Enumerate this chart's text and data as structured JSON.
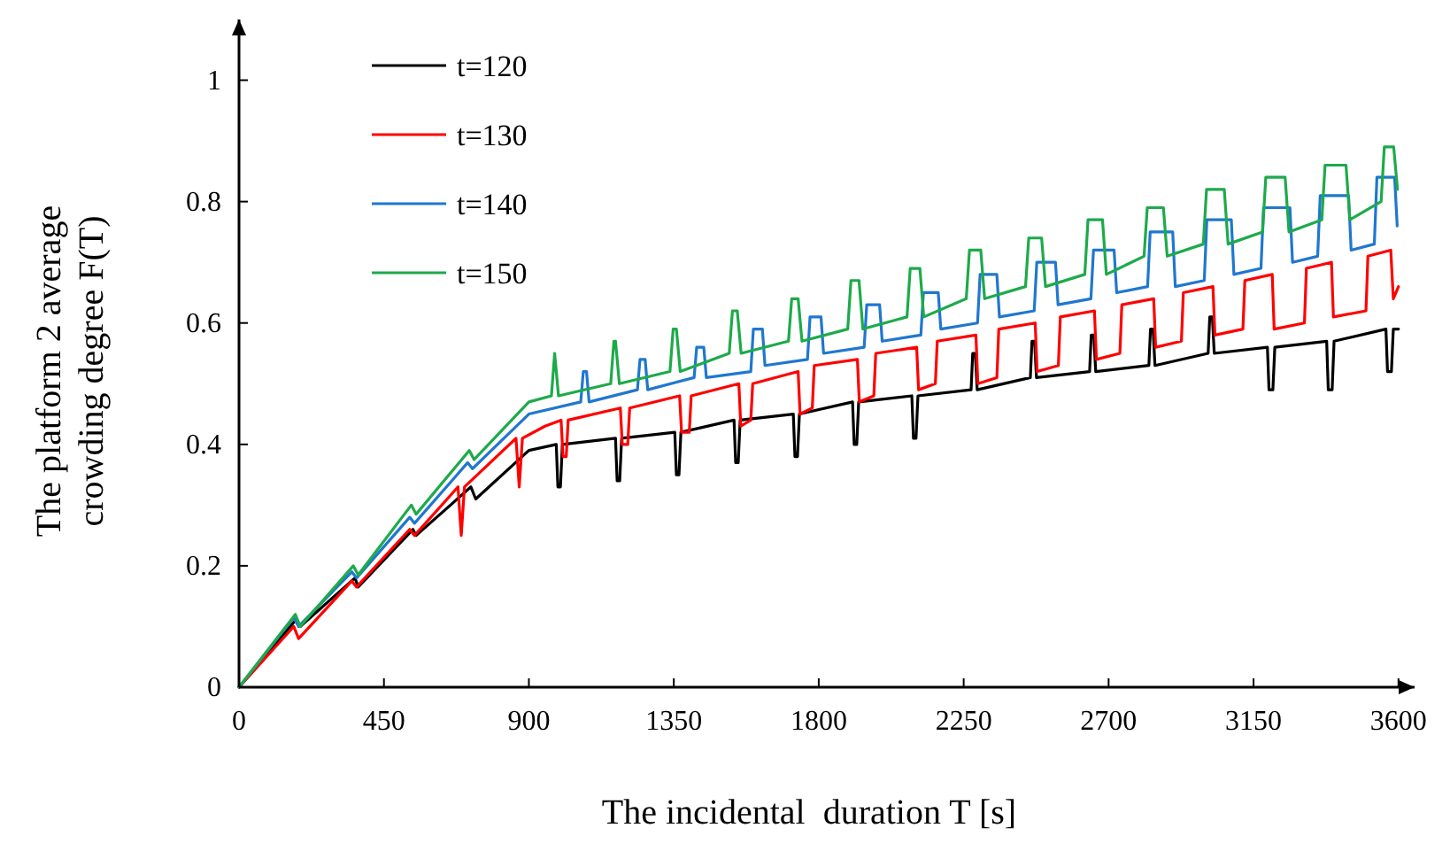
{
  "chart_data": {
    "type": "line",
    "xlabel": "The incidental  duration T [s]",
    "ylabel": "The platform 2 average crowding degree F(T)",
    "xlim": [
      0,
      3650
    ],
    "ylim": [
      0,
      1.1
    ],
    "xticks": [
      0,
      450,
      900,
      1350,
      1800,
      2250,
      2700,
      3150,
      3600
    ],
    "yticks": [
      0,
      0.2,
      0.4,
      0.6,
      0.8,
      1
    ],
    "grid": false,
    "legend": "top left",
    "marker": "none",
    "line_style": "solid",
    "series": [
      {
        "name": "t=120",
        "color": "#000000",
        "x": [
          0,
          175,
          190,
          360,
          370,
          540,
          550,
          720,
          735,
          900,
          985,
          990,
          998,
          1004,
          1169,
          1174,
          1182,
          1188,
          1353,
          1358,
          1366,
          1372,
          1537,
          1542,
          1550,
          1556,
          1721,
          1726,
          1734,
          1740,
          1905,
          1910,
          1918,
          1924,
          2089,
          2094,
          2102,
          2108,
          2273,
          2278,
          2286,
          2292,
          2457,
          2462,
          2470,
          2476,
          2641,
          2646,
          2654,
          2660,
          2825,
          2830,
          2838,
          2844,
          3009,
          3014,
          3022,
          3028,
          3193,
          3198,
          3210,
          3216,
          3377,
          3382,
          3394,
          3400,
          3561,
          3566,
          3578,
          3584,
          3600
        ],
        "values": [
          0,
          0.11,
          0.1,
          0.18,
          0.165,
          0.26,
          0.25,
          0.33,
          0.31,
          0.39,
          0.4,
          0.33,
          0.33,
          0.4,
          0.41,
          0.34,
          0.34,
          0.41,
          0.42,
          0.35,
          0.35,
          0.42,
          0.44,
          0.37,
          0.37,
          0.44,
          0.45,
          0.38,
          0.38,
          0.45,
          0.47,
          0.4,
          0.4,
          0.47,
          0.48,
          0.41,
          0.41,
          0.48,
          0.49,
          0.55,
          0.55,
          0.49,
          0.51,
          0.57,
          0.57,
          0.51,
          0.52,
          0.58,
          0.58,
          0.52,
          0.53,
          0.59,
          0.59,
          0.53,
          0.55,
          0.61,
          0.61,
          0.55,
          0.56,
          0.49,
          0.49,
          0.56,
          0.57,
          0.49,
          0.49,
          0.57,
          0.59,
          0.52,
          0.52,
          0.59,
          0.59
        ]
      },
      {
        "name": "t=130",
        "color": "#ff0000",
        "x": [
          0,
          170,
          185,
          350,
          365,
          530,
          545,
          680,
          690,
          700,
          860,
          870,
          880,
          950,
          1000,
          1006,
          1016,
          1022,
          1184,
          1190,
          1207,
          1213,
          1368,
          1374,
          1398,
          1404,
          1552,
          1558,
          1589,
          1595,
          1736,
          1742,
          1780,
          1786,
          1920,
          1926,
          1971,
          1977,
          2104,
          2110,
          2162,
          2168,
          2288,
          2294,
          2353,
          2359,
          2472,
          2478,
          2544,
          2550,
          2656,
          2662,
          2735,
          2741,
          2840,
          2846,
          2926,
          2932,
          3024,
          3030,
          3117,
          3123,
          3208,
          3214,
          3308,
          3314,
          3392,
          3398,
          3499,
          3505,
          3576,
          3584,
          3600
        ],
        "values": [
          0,
          0.1,
          0.08,
          0.175,
          0.165,
          0.26,
          0.25,
          0.33,
          0.25,
          0.33,
          0.41,
          0.33,
          0.41,
          0.43,
          0.44,
          0.38,
          0.38,
          0.44,
          0.46,
          0.4,
          0.4,
          0.46,
          0.48,
          0.42,
          0.42,
          0.48,
          0.5,
          0.43,
          0.44,
          0.5,
          0.52,
          0.45,
          0.46,
          0.53,
          0.54,
          0.47,
          0.48,
          0.55,
          0.56,
          0.49,
          0.5,
          0.57,
          0.58,
          0.5,
          0.51,
          0.59,
          0.6,
          0.52,
          0.53,
          0.61,
          0.62,
          0.54,
          0.55,
          0.63,
          0.64,
          0.56,
          0.57,
          0.65,
          0.66,
          0.58,
          0.59,
          0.67,
          0.68,
          0.59,
          0.6,
          0.69,
          0.7,
          0.61,
          0.62,
          0.71,
          0.72,
          0.64,
          0.66
        ]
      },
      {
        "name": "t=140",
        "color": "#1f77d0",
        "x": [
          0,
          170,
          185,
          350,
          365,
          530,
          545,
          710,
          725,
          900,
          1061,
          1069,
          1079,
          1087,
          1237,
          1245,
          1261,
          1269,
          1413,
          1421,
          1443,
          1451,
          1589,
          1597,
          1625,
          1633,
          1765,
          1773,
          1807,
          1815,
          1941,
          1949,
          1989,
          1997,
          2117,
          2125,
          2171,
          2179,
          2293,
          2301,
          2353,
          2361,
          2469,
          2477,
          2535,
          2543,
          2645,
          2653,
          2717,
          2725,
          2821,
          2829,
          2899,
          2907,
          2997,
          3005,
          3081,
          3089,
          3173,
          3181,
          3263,
          3271,
          3349,
          3357,
          3445,
          3453,
          3525,
          3533,
          3588,
          3596
        ],
        "values": [
          0,
          0.115,
          0.1,
          0.19,
          0.18,
          0.28,
          0.27,
          0.37,
          0.36,
          0.45,
          0.47,
          0.52,
          0.52,
          0.47,
          0.49,
          0.54,
          0.54,
          0.49,
          0.51,
          0.56,
          0.56,
          0.51,
          0.52,
          0.59,
          0.59,
          0.53,
          0.54,
          0.61,
          0.61,
          0.55,
          0.56,
          0.63,
          0.63,
          0.57,
          0.58,
          0.65,
          0.65,
          0.59,
          0.6,
          0.68,
          0.68,
          0.61,
          0.62,
          0.7,
          0.7,
          0.63,
          0.64,
          0.72,
          0.72,
          0.65,
          0.66,
          0.75,
          0.75,
          0.66,
          0.67,
          0.77,
          0.77,
          0.68,
          0.69,
          0.79,
          0.79,
          0.7,
          0.71,
          0.81,
          0.81,
          0.72,
          0.73,
          0.84,
          0.84,
          0.76
        ]
      },
      {
        "name": "t=150",
        "color": "#1daa4a",
        "x": [
          0,
          175,
          190,
          355,
          370,
          535,
          550,
          715,
          730,
          900,
          970,
          980,
          992,
          1154,
          1164,
          1169,
          1181,
          1338,
          1348,
          1358,
          1370,
          1522,
          1532,
          1547,
          1559,
          1706,
          1716,
          1736,
          1748,
          1890,
          1900,
          1925,
          1937,
          2074,
          2084,
          2114,
          2126,
          2258,
          2268,
          2303,
          2315,
          2442,
          2452,
          2492,
          2504,
          2626,
          2636,
          2681,
          2693,
          2810,
          2820,
          2870,
          2882,
          2994,
          3004,
          3059,
          3071,
          3178,
          3188,
          3248,
          3260,
          3362,
          3372,
          3437,
          3449,
          3546,
          3556,
          3585,
          3597
        ],
        "values": [
          0,
          0.12,
          0.1,
          0.2,
          0.185,
          0.3,
          0.285,
          0.39,
          0.375,
          0.47,
          0.48,
          0.55,
          0.48,
          0.5,
          0.57,
          0.57,
          0.5,
          0.52,
          0.59,
          0.59,
          0.52,
          0.55,
          0.62,
          0.62,
          0.55,
          0.57,
          0.64,
          0.64,
          0.57,
          0.59,
          0.67,
          0.67,
          0.59,
          0.61,
          0.69,
          0.69,
          0.61,
          0.64,
          0.72,
          0.72,
          0.64,
          0.66,
          0.74,
          0.74,
          0.66,
          0.68,
          0.77,
          0.77,
          0.68,
          0.71,
          0.79,
          0.79,
          0.71,
          0.73,
          0.82,
          0.82,
          0.73,
          0.75,
          0.84,
          0.84,
          0.75,
          0.77,
          0.86,
          0.86,
          0.77,
          0.8,
          0.89,
          0.89,
          0.82
        ]
      }
    ]
  }
}
